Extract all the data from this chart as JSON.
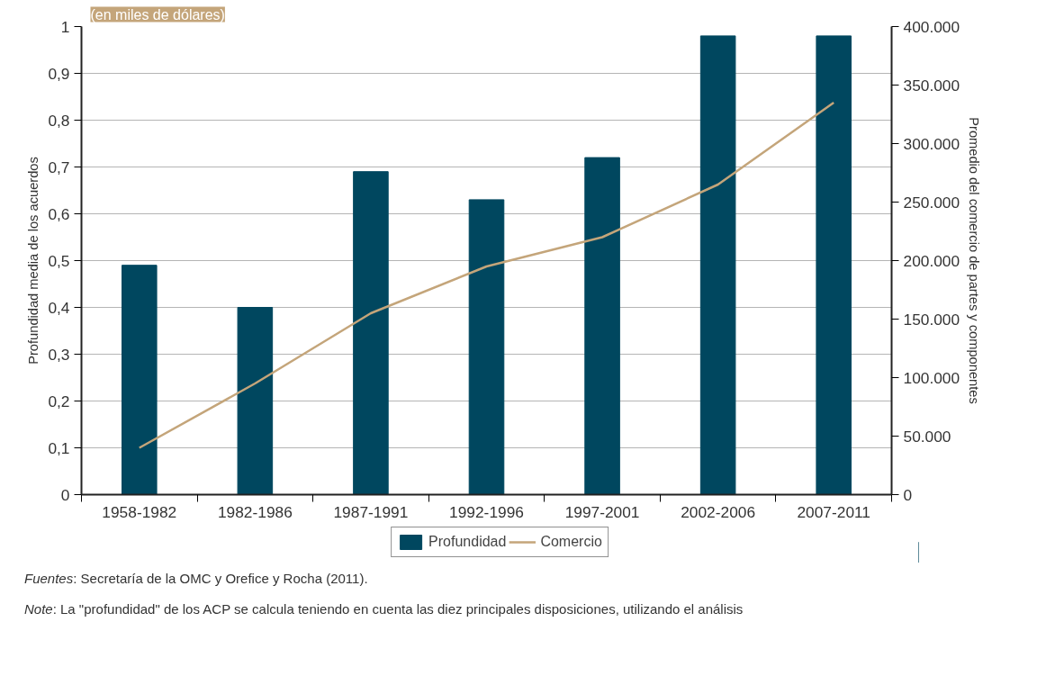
{
  "chart_data": {
    "type": "bar",
    "subtitle": "(en miles de dólares)",
    "categories": [
      "1958-1982",
      "1982-1986",
      "1987-1991",
      "1992-1996",
      "1997-2001",
      "2002-2006",
      "2007-2011"
    ],
    "series": [
      {
        "name": "Profundidad",
        "color": "#00475f",
        "values": [
          0.49,
          0.4,
          0.69,
          0.63,
          0.72,
          0.98,
          0.98
        ]
      },
      {
        "name": "Comercio",
        "type": "line",
        "axis": "y2",
        "color": "#c4a57a",
        "values": [
          40000,
          95000,
          155000,
          195000,
          220000,
          265000,
          335000
        ]
      }
    ],
    "ylabel": "Profundidad media de los acuerdos",
    "y2label": "Promedio del comercio de partes y componentes",
    "ylim": [
      0,
      1
    ],
    "yticks": [
      0,
      {
        "value": 0.1,
        "label": "0,1"
      },
      {
        "value": 0.2,
        "label": "0,2"
      },
      {
        "value": 0.3,
        "label": "0,3"
      },
      {
        "value": 0.4,
        "label": "0,4"
      },
      {
        "value": 0.5,
        "label": "0,5"
      },
      {
        "value": 0.6,
        "label": "0,6"
      },
      {
        "value": 0.7,
        "label": "0,7"
      },
      {
        "value": 0.8,
        "label": "0,8"
      },
      {
        "value": 0.9,
        "label": "0,9"
      },
      1
    ],
    "y2lim": [
      0,
      400000
    ],
    "y2ticks": [
      0,
      {
        "value": 50000,
        "label": "50.000"
      },
      {
        "value": 100000,
        "label": "100.000"
      },
      {
        "value": 150000,
        "label": "150.000"
      },
      {
        "value": 200000,
        "label": "200.000"
      },
      {
        "value": 250000,
        "label": "250.000"
      },
      {
        "value": 300000,
        "label": "300.000"
      },
      {
        "value": 350000,
        "label": "350.000"
      },
      {
        "value": 400000,
        "label": "400.000"
      }
    ],
    "grid": "y",
    "legend": "bottom",
    "annotations": [
      "Fuentes: Secretaría de la OMC y Orefice y Rocha (2011).",
      "Note: La \"profundidad\" de los ACP se calcula teniendo en cuenta las diez principales disposiciones, utilizando el análisis"
    ]
  }
}
